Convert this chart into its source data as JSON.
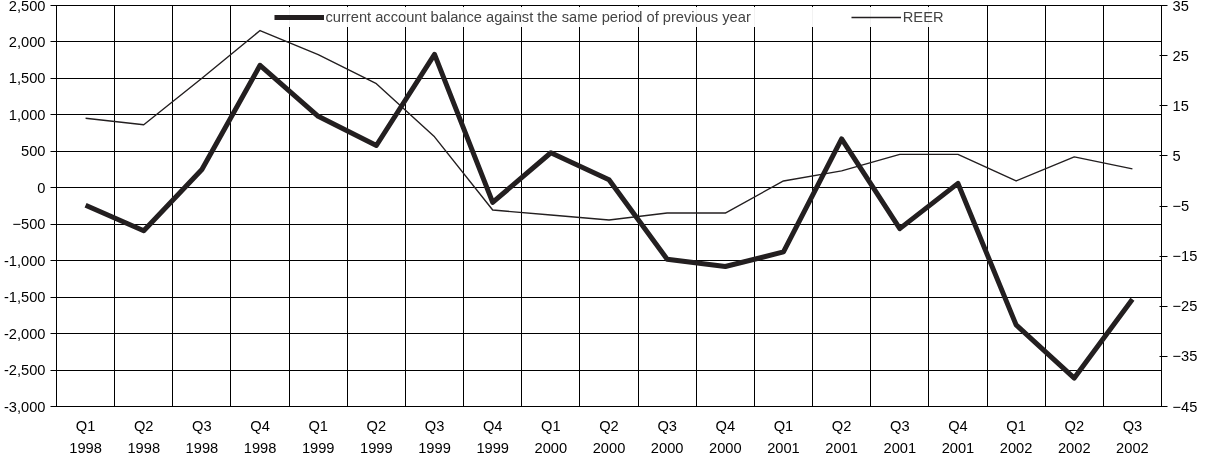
{
  "chart_data": {
    "type": "line",
    "categories": [
      "Q1 1998",
      "Q2 1998",
      "Q3 1998",
      "Q4 1998",
      "Q1 1999",
      "Q2 1999",
      "Q3 1999",
      "Q4 1999",
      "Q1 2000",
      "Q2 2000",
      "Q3 2000",
      "Q4 2000",
      "Q1 2001",
      "Q2 2001",
      "Q3 2001",
      "Q4 2001",
      "Q1 2002",
      "Q2 2002",
      "Q3 2002"
    ],
    "series": [
      {
        "name": "current account balance against the same period of previous year",
        "color": "#231f20",
        "values": [
          -240,
          -590,
          250,
          1680,
          980,
          580,
          1830,
          -200,
          480,
          110,
          -980,
          -1080,
          -880,
          670,
          -560,
          60,
          -1880,
          -2610,
          -1530
        ]
      },
      {
        "name": "REER",
        "color": "#231f20",
        "axis": "y2",
        "values": [
          12.5,
          11.2,
          20.5,
          30,
          25.2,
          19.4,
          8.8,
          -5.8,
          -6.8,
          -7.8,
          -6.4,
          -6.4,
          0,
          2,
          5.3,
          5.3,
          0,
          4.8,
          2.4
        ]
      }
    ],
    "ylim": [
      -3000,
      2500
    ],
    "yticks": [
      {
        "value": -3000,
        "label": "-3,000"
      },
      {
        "value": -2500,
        "label": "-2,500"
      },
      {
        "value": -2000,
        "label": "-2,000"
      },
      {
        "value": -1500,
        "label": "-1,500"
      },
      {
        "value": -1000,
        "label": "-1,000"
      },
      -500,
      0,
      500,
      {
        "value": 1000,
        "label": "1,000"
      },
      {
        "value": 1500,
        "label": "1,500"
      },
      {
        "value": 2000,
        "label": "2,000"
      },
      {
        "value": 2500,
        "label": "2,500"
      }
    ],
    "y2lim": [
      -45,
      35
    ],
    "y2ticks": [
      -45,
      -35,
      -25,
      -15,
      -5,
      5,
      15,
      25,
      35
    ],
    "grid": true,
    "legend": "top",
    "marker": "none",
    "line_style": "solid"
  }
}
